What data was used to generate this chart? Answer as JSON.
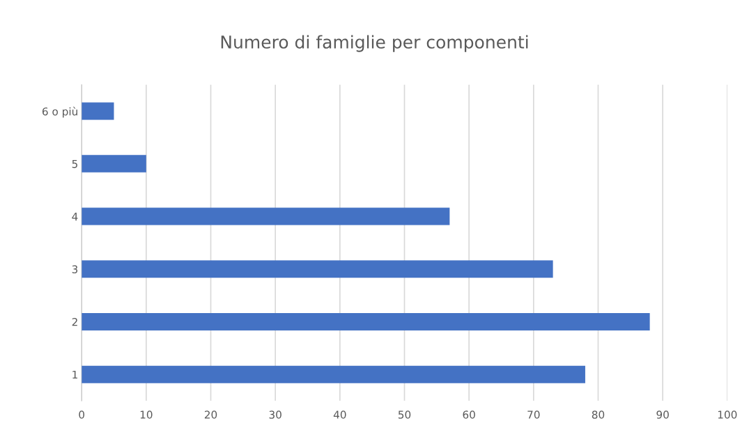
{
  "chart_data": {
    "type": "bar",
    "orientation": "horizontal",
    "title": "Numero di famiglie per componenti",
    "categories": [
      "6 o più",
      "5",
      "4",
      "3",
      "2",
      "1"
    ],
    "values": [
      5,
      10,
      57,
      73,
      88,
      78
    ],
    "color": "#4472c4",
    "xlim": [
      0,
      100
    ],
    "xticks": [
      0,
      10,
      20,
      30,
      40,
      50,
      60,
      70,
      80,
      90,
      100
    ],
    "grid": "x"
  }
}
